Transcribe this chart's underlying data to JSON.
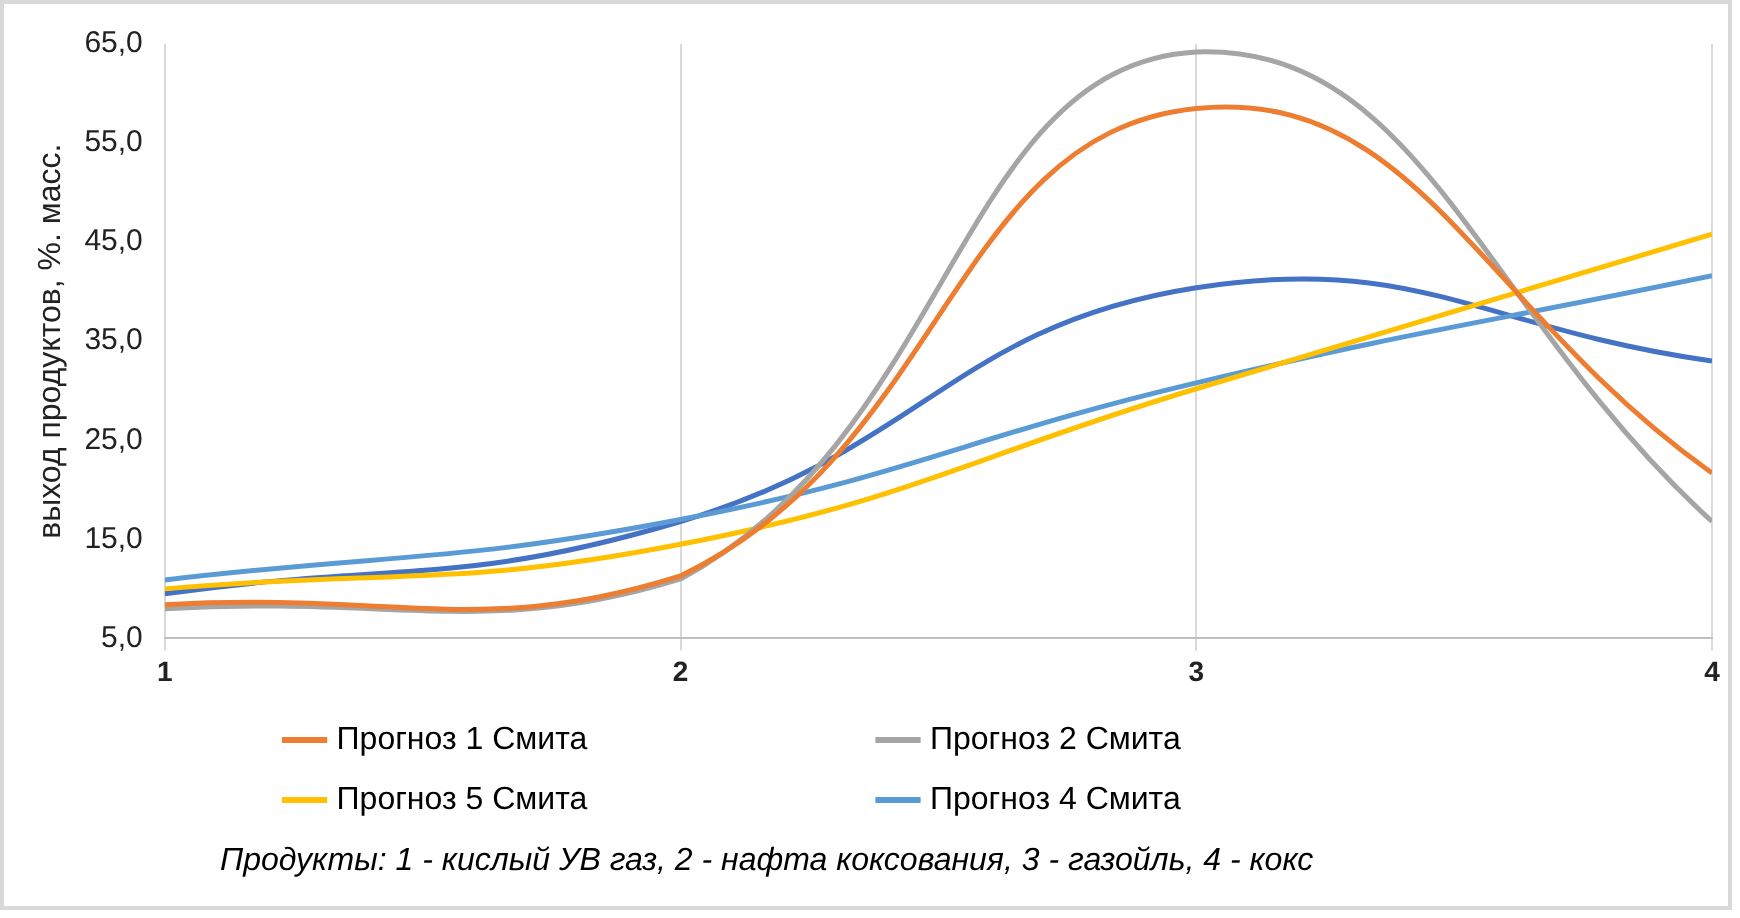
{
  "chart_data": {
    "type": "line",
    "ylabel": "выход продуктов, %. масс.",
    "x": [
      1,
      2,
      3,
      4
    ],
    "xlim": [
      1,
      4
    ],
    "xticks": [
      1,
      2,
      3,
      4
    ],
    "ylim": [
      5,
      65
    ],
    "yticks": [
      {
        "value": 5,
        "label": "5,0"
      },
      {
        "value": 15,
        "label": "15,0"
      },
      {
        "value": 25,
        "label": "25,0"
      },
      {
        "value": 35,
        "label": "35,0"
      },
      {
        "value": 45,
        "label": "45,0"
      },
      {
        "value": 55,
        "label": "55,0"
      },
      {
        "value": 65,
        "label": "65,0"
      }
    ],
    "grid": "x",
    "legend": "bottom",
    "marker": "none",
    "line_style": "solid",
    "series": [
      {
        "name": "Прогноз 1 Смита",
        "color": "#ed7d31",
        "values": [
          8.4,
          11.3,
          58.5,
          21.7
        ]
      },
      {
        "name": "Прогноз 2 Смита",
        "color": "#a5a5a5",
        "values": [
          8.0,
          11.0,
          64.2,
          16.8
        ]
      },
      {
        "name": "Прогноз 5 Смита",
        "color": "#ffc000",
        "values": [
          10.0,
          14.5,
          30.2,
          45.8
        ]
      },
      {
        "name": "Прогноз 4 Смита",
        "color": "#5b9bd5",
        "values": [
          10.9,
          17.0,
          30.8,
          41.6
        ]
      },
      {
        "color": "#4472c4",
        "values": [
          9.5,
          16.8,
          40.4,
          33.0
        ]
      }
    ],
    "annotations": [
      "Продукты: 1 - кислый УВ газ, 2 - нафта коксования, 3 - газойль, 4 - кокс"
    ]
  }
}
